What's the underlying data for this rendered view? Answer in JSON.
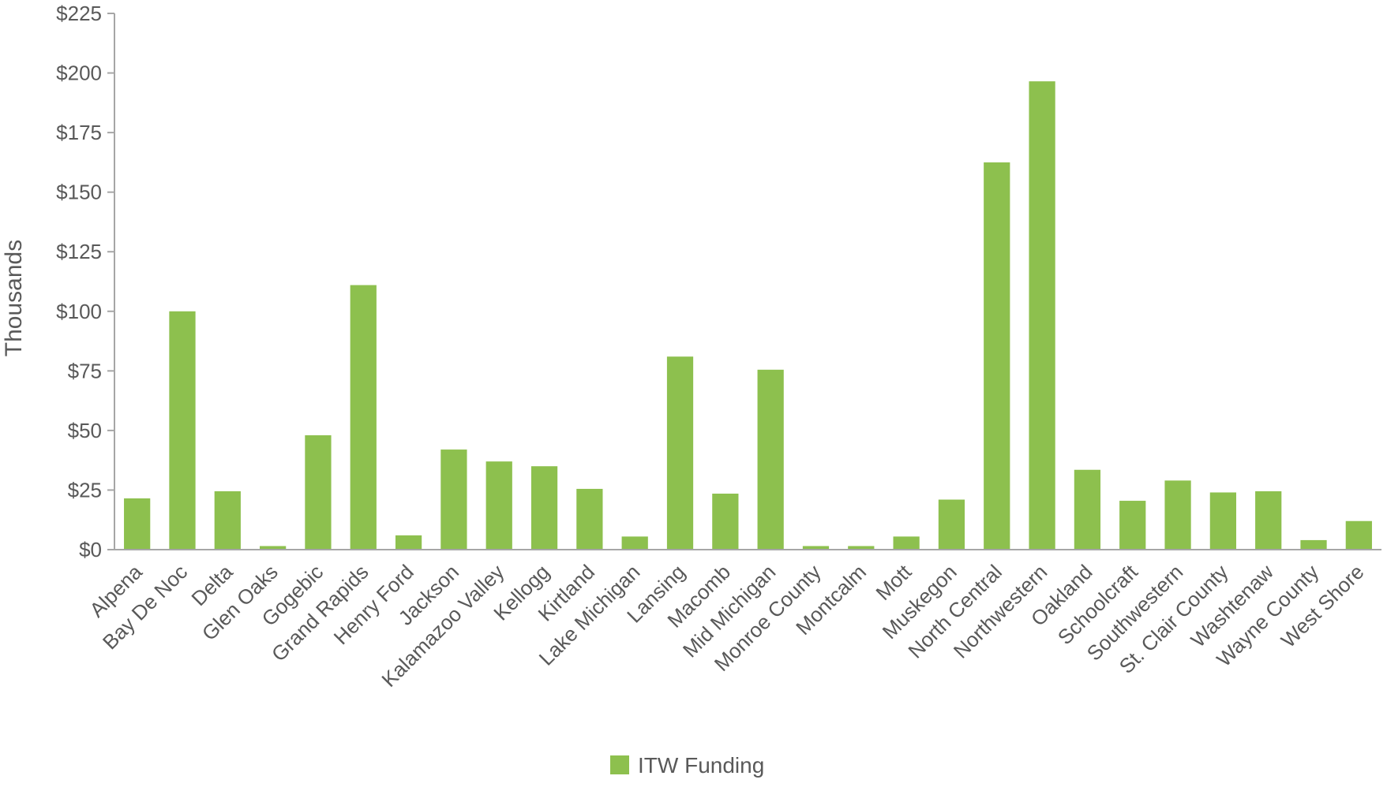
{
  "chart_data": {
    "type": "bar",
    "title": "",
    "xlabel": "",
    "ylabel": "Thousands",
    "ylim": [
      0,
      225
    ],
    "yticks": [
      0,
      25,
      50,
      75,
      100,
      125,
      150,
      175,
      200,
      225
    ],
    "ytick_labels": [
      "$0",
      "$25",
      "$50",
      "$75",
      "$100",
      "$125",
      "$150",
      "$175",
      "$200",
      "$225"
    ],
    "grid": false,
    "legend_position": "bottom-center",
    "categories": [
      "Alpena",
      "Bay De Noc",
      "Delta",
      "Glen Oaks",
      "Gogebic",
      "Grand Rapids",
      "Henry Ford",
      "Jackson",
      "Kalamazoo Valley",
      "Kellogg",
      "Kirtland",
      "Lake Michigan",
      "Lansing",
      "Macomb",
      "Mid Michigan",
      "Monroe County",
      "Montcalm",
      "Mott",
      "Muskegon",
      "North Central",
      "Northwestern",
      "Oakland",
      "Schoolcraft",
      "Southwestern",
      "St. Clair County",
      "Washtenaw",
      "Wayne County",
      "West Shore"
    ],
    "series": [
      {
        "name": "ITW Funding",
        "color": "#8dc04e",
        "values": [
          21.5,
          100,
          24.5,
          1.5,
          48,
          111,
          6,
          42,
          37,
          35,
          25.5,
          5.5,
          81,
          23.5,
          75.5,
          1.5,
          1.5,
          5.5,
          21,
          162.5,
          196.5,
          33.5,
          20.5,
          29,
          24,
          24.5,
          4,
          12
        ]
      }
    ]
  }
}
